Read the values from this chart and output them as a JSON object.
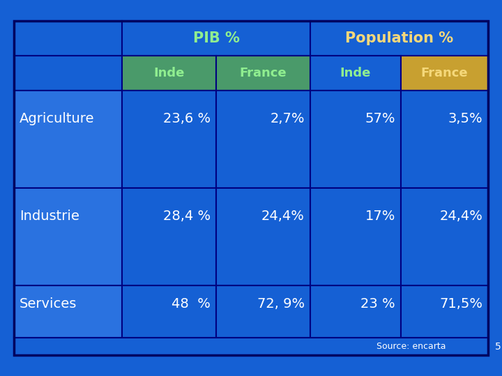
{
  "bg_color": "#1560d4",
  "border_color": "#000080",
  "text_color_white": "#ffffff",
  "text_color_yellow": "#f5d87a",
  "text_color_green": "#90ee90",
  "header_highlight_inde_pib": "#4a9a6a",
  "header_highlight_france_pib": "#4a9a6a",
  "header_highlight_france_pop": "#c8a030",
  "row_label_bg": "#2a72e0",
  "rows": [
    [
      "Agriculture",
      "23,6 %",
      "2,7%",
      "57%",
      "3,5%"
    ],
    [
      "Industrie",
      "28,4 %",
      "24,4%",
      "17%",
      "24,4%"
    ],
    [
      "Services",
      "48  %",
      "72, 9%",
      "23 %",
      "71,5%"
    ]
  ],
  "source_text": "Source: encarta",
  "page_num": "5"
}
